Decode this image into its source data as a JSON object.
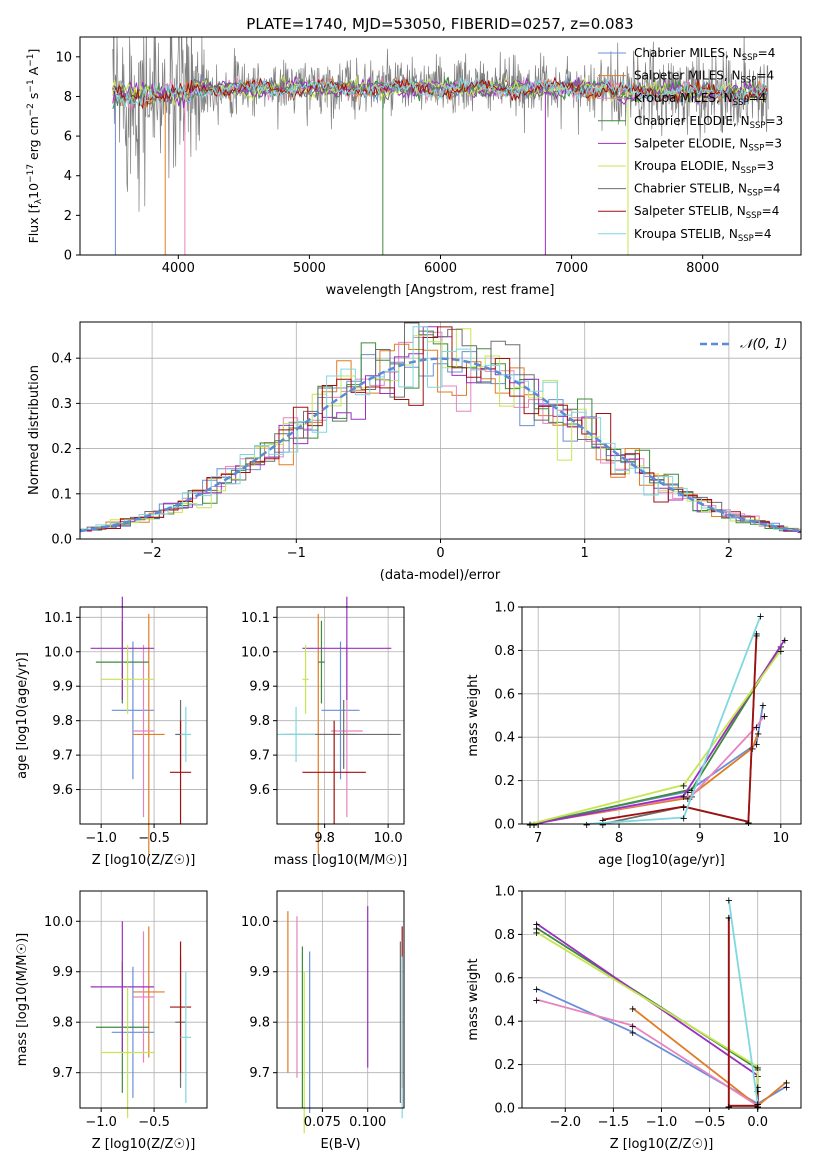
{
  "colors": [
    "#4c72b0",
    "#dd8452",
    "#55a868",
    "#c44e52",
    "#8172b3",
    "#937860",
    "#da8bc3",
    "#8c8c8c",
    "#ccb974",
    "#64b5cd"
  ],
  "series_colors": {
    "Chabrier MILES": "#6a8fd8",
    "Salpeter MILES": "#e07c24",
    "Kroupa MILES": "#e784c0",
    "Chabrier ELODIE": "#3d8b3d",
    "Salpeter ELODIE": "#9b30c0",
    "Kroupa ELODIE": "#c5e651",
    "Chabrier STELIB": "#6e6e6e",
    "Salpeter STELIB": "#a01010",
    "Kroupa STELIB": "#7fd8e0"
  },
  "chart_data": [
    {
      "id": "spectrum",
      "type": "line",
      "title": "PLATE=1740, MJD=53050, FIBERID=0257, z=0.083",
      "xlabel": "wavelength [Angstrom, rest frame]",
      "ylabel": "Flux [f_λ10^-17 erg cm^-2 s^-1 A^-1]",
      "xlim": [
        3250,
        8750
      ],
      "ylim": [
        0,
        11
      ],
      "xticks": [
        "4000",
        "5000",
        "6000",
        "7000",
        "8000"
      ],
      "yticks": [
        "0",
        "2",
        "4",
        "6",
        "8",
        "10"
      ],
      "legend": [
        {
          "name": "Chabrier MILES",
          "sub": "SSP",
          "n": "=4"
        },
        {
          "name": "Salpeter MILES",
          "sub": "SSP",
          "n": "=4"
        },
        {
          "name": "Kroupa MILES",
          "sub": "SSP",
          "n": "=4"
        },
        {
          "name": "Chabrier ELODIE",
          "sub": "SSP",
          "n": "=3"
        },
        {
          "name": "Salpeter ELODIE",
          "sub": "SSP",
          "n": "=3"
        },
        {
          "name": "Kroupa ELODIE",
          "sub": "SSP",
          "n": "=3"
        },
        {
          "name": "Chabrier STELIB",
          "sub": "SSP",
          "n": "=4"
        },
        {
          "name": "Salpeter STELIB",
          "sub": "SSP",
          "n": "=4"
        },
        {
          "name": "Kroupa STELIB",
          "sub": "SSP",
          "n": "=4"
        }
      ],
      "data_range": [
        3500,
        8500
      ],
      "continuum_level": 8.5,
      "spike_wavelengths": [
        3520,
        3900,
        4050,
        5560,
        6800,
        7430
      ]
    },
    {
      "id": "residuals",
      "type": "histogram",
      "xlabel": "(data-model)/error",
      "ylabel": "Normed distribution",
      "xlim": [
        -2.5,
        2.5
      ],
      "ylim": [
        0,
        0.48
      ],
      "xticks": [
        "−2",
        "−1",
        "0",
        "1",
        "2"
      ],
      "yticks": [
        "0.0",
        "0.1",
        "0.2",
        "0.3",
        "0.4"
      ],
      "legend": "𝒩(0, 1)",
      "bin_width": 0.1
    },
    {
      "id": "age_vs_Z",
      "type": "errorbar",
      "xlabel": "Z [log10(Z/Z☉)]",
      "ylabel": "age  [log10(age/yr)]",
      "xlim": [
        -1.2,
        -0.0
      ],
      "ylim": [
        9.5,
        10.13
      ],
      "xticks": [
        "−1.0",
        "−0.5"
      ],
      "yticks": [
        "9.6",
        "9.7",
        "9.8",
        "9.9",
        "10.0",
        "10.1"
      ],
      "points": [
        {
          "s": "Chabrier MILES",
          "x": -0.7,
          "y": 9.83,
          "ex": 0.2,
          "ey": 0.2
        },
        {
          "s": "Salpeter MILES",
          "x": -0.55,
          "y": 9.76,
          "ex": 0.15,
          "ey": 0.35
        },
        {
          "s": "Kroupa MILES",
          "x": -0.6,
          "y": 9.77,
          "ex": 0.1,
          "ey": 0.25
        },
        {
          "s": "Chabrier ELODIE",
          "x": -0.8,
          "y": 9.97,
          "ex": 0.25,
          "ey": 0.12
        },
        {
          "s": "Salpeter ELODIE",
          "x": -0.8,
          "y": 10.01,
          "ex": 0.3,
          "ey": 0.15
        },
        {
          "s": "Kroupa ELODIE",
          "x": -0.75,
          "y": 9.92,
          "ex": 0.25,
          "ey": 0.1
        },
        {
          "s": "Chabrier STELIB",
          "x": -0.25,
          "y": 9.76,
          "ex": 0.05,
          "ey": 0.1
        },
        {
          "s": "Salpeter STELIB",
          "x": -0.25,
          "y": 9.65,
          "ex": 0.1,
          "ey": 0.15
        },
        {
          "s": "Kroupa STELIB",
          "x": -0.2,
          "y": 9.76,
          "ex": 0.05,
          "ey": 0.08
        }
      ]
    },
    {
      "id": "age_vs_mass",
      "type": "errorbar",
      "xlabel": "mass [log10(M/M☉)]",
      "ylabel": "",
      "xlim": [
        9.65,
        10.05
      ],
      "ylim": [
        9.5,
        10.13
      ],
      "xticks": [
        "9.8",
        "10.0"
      ],
      "yticks": [
        "9.6",
        "9.7",
        "9.8",
        "9.9",
        "10.0",
        "10.1"
      ],
      "points": [
        {
          "s": "Chabrier MILES",
          "x": 9.85,
          "y": 9.83,
          "ex": 0.06,
          "ey": 0.2
        },
        {
          "s": "Salpeter MILES",
          "x": 9.78,
          "y": 9.76,
          "ex": 0.12,
          "ey": 0.35
        },
        {
          "s": "Kroupa MILES",
          "x": 9.87,
          "y": 9.77,
          "ex": 0.05,
          "ey": 0.25
        },
        {
          "s": "Chabrier ELODIE",
          "x": 9.79,
          "y": 9.97,
          "ex": 0.01,
          "ey": 0.12
        },
        {
          "s": "Salpeter ELODIE",
          "x": 9.87,
          "y": 10.01,
          "ex": 0.14,
          "ey": 0.15
        },
        {
          "s": "Kroupa ELODIE",
          "x": 9.74,
          "y": 9.92,
          "ex": 0.01,
          "ey": 0.1
        },
        {
          "s": "Chabrier STELIB",
          "x": 9.86,
          "y": 9.76,
          "ex": 0.18,
          "ey": 0.1
        },
        {
          "s": "Salpeter STELIB",
          "x": 9.83,
          "y": 9.65,
          "ex": 0.1,
          "ey": 0.15
        },
        {
          "s": "Kroupa STELIB",
          "x": 9.71,
          "y": 9.76,
          "ex": 0.06,
          "ey": 0.08
        }
      ]
    },
    {
      "id": "weight_vs_age",
      "type": "line",
      "xlabel": "age  [log10(age/yr)]",
      "ylabel": "mass weight",
      "xlim": [
        6.8,
        10.25
      ],
      "ylim": [
        0,
        1
      ],
      "xticks": [
        "7",
        "8",
        "9",
        "10"
      ],
      "yticks": [
        "0.0",
        "0.2",
        "0.4",
        "0.6",
        "0.8",
        "1.0"
      ]
    },
    {
      "id": "mass_vs_Z",
      "type": "errorbar",
      "xlabel": "Z [log10(Z/Z☉)]",
      "ylabel": "mass [log10(M/M☉)]",
      "xlim": [
        -1.2,
        -0.0
      ],
      "ylim": [
        9.63,
        10.06
      ],
      "xticks": [
        "−1.0",
        "−0.5"
      ],
      "yticks": [
        "9.7",
        "9.8",
        "9.9",
        "10.0"
      ]
    },
    {
      "id": "mass_vs_EBV",
      "type": "errorbar",
      "xlabel": "E(B-V)",
      "ylabel": "",
      "xlim": [
        0.05,
        0.12
      ],
      "ylim": [
        9.63,
        10.06
      ],
      "xticks": [
        "0.075",
        "0.100"
      ],
      "yticks": [
        "9.7",
        "9.8",
        "9.9",
        "10.0"
      ]
    },
    {
      "id": "weight_vs_Z",
      "type": "line",
      "xlabel": "Z [log10(Z/Z☉)]",
      "ylabel": "mass weight",
      "xlim": [
        -2.45,
        0.45
      ],
      "ylim": [
        0,
        1
      ],
      "xticks": [
        "−2.0",
        "−1.5",
        "−1.0",
        "−0.5",
        "0.0"
      ],
      "yticks": [
        "0.0",
        "0.2",
        "0.4",
        "0.6",
        "0.8",
        "1.0"
      ]
    }
  ]
}
